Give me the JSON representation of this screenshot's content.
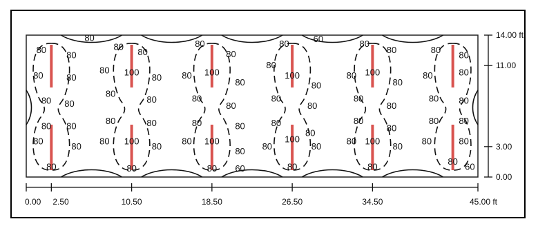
{
  "plan": {
    "x_ticks": [
      {
        "label": "0.00"
      },
      {
        "label": "2.50"
      },
      {
        "label": "10.50"
      },
      {
        "label": "18.50"
      },
      {
        "label": "26.50"
      },
      {
        "label": "34.50"
      },
      {
        "label": "45.00 ft"
      }
    ],
    "y_ticks": [
      {
        "label": "14.00 ft"
      },
      {
        "label": "11.00"
      },
      {
        "label": "3.00"
      },
      {
        "label": "0.00"
      }
    ],
    "luminaire_color": "#d9534f",
    "luminaire_columns": [
      2.5,
      10.5,
      18.5,
      26.5,
      34.5,
      42.5
    ],
    "luminaire_rows": [
      11.0,
      3.0
    ],
    "contour_labels": [
      {
        "text": "80",
        "x": 1.5,
        "y": 12.5
      },
      {
        "text": "80",
        "x": 4.5,
        "y": 12.0
      },
      {
        "text": "80",
        "x": 1.2,
        "y": 10.0
      },
      {
        "text": "80",
        "x": 4.5,
        "y": 9.8
      },
      {
        "text": "80",
        "x": 2.0,
        "y": 7.5
      },
      {
        "text": "80",
        "x": 4.3,
        "y": 7.2
      },
      {
        "text": "80",
        "x": 2.0,
        "y": 5.0
      },
      {
        "text": "80",
        "x": 4.5,
        "y": 5.0
      },
      {
        "text": "80",
        "x": 1.2,
        "y": 3.5
      },
      {
        "text": "80",
        "x": 5.0,
        "y": 3.0
      },
      {
        "text": "80",
        "x": 2.5,
        "y": 1.0
      },
      {
        "text": "80",
        "x": 6.3,
        "y": 13.7
      },
      {
        "text": "80",
        "x": 9.2,
        "y": 12.8
      },
      {
        "text": "80",
        "x": 11.6,
        "y": 12.3
      },
      {
        "text": "80",
        "x": 7.8,
        "y": 10.5
      },
      {
        "text": "100",
        "x": 10.5,
        "y": 10.3
      },
      {
        "text": "80",
        "x": 13.0,
        "y": 9.8
      },
      {
        "text": "80",
        "x": 8.4,
        "y": 8.2
      },
      {
        "text": "80",
        "x": 12.5,
        "y": 7.6
      },
      {
        "text": "80",
        "x": 8.4,
        "y": 5.5
      },
      {
        "text": "80",
        "x": 12.5,
        "y": 5.3
      },
      {
        "text": "80",
        "x": 7.8,
        "y": 3.5
      },
      {
        "text": "100",
        "x": 10.5,
        "y": 3.5
      },
      {
        "text": "80",
        "x": 13.0,
        "y": 3.0
      },
      {
        "text": "80",
        "x": 10.5,
        "y": 0.8
      },
      {
        "text": "80",
        "x": 17.3,
        "y": 13.1
      },
      {
        "text": "80",
        "x": 20.4,
        "y": 12.1
      },
      {
        "text": "80",
        "x": 16.0,
        "y": 10.0
      },
      {
        "text": "100",
        "x": 18.5,
        "y": 10.3
      },
      {
        "text": "80",
        "x": 21.3,
        "y": 9.3
      },
      {
        "text": "80",
        "x": 17.0,
        "y": 7.7
      },
      {
        "text": "80",
        "x": 20.4,
        "y": 7.0
      },
      {
        "text": "80",
        "x": 17.0,
        "y": 5.3
      },
      {
        "text": "80",
        "x": 21.3,
        "y": 5.0
      },
      {
        "text": "80",
        "x": 16.0,
        "y": 3.5
      },
      {
        "text": "100",
        "x": 18.5,
        "y": 3.5
      },
      {
        "text": "80",
        "x": 21.3,
        "y": 2.5
      },
      {
        "text": "60",
        "x": 21.3,
        "y": 0.8
      },
      {
        "text": "80",
        "x": 18.5,
        "y": 0.8
      },
      {
        "text": "80",
        "x": 25.7,
        "y": 13.1
      },
      {
        "text": "60",
        "x": 29.1,
        "y": 13.6
      },
      {
        "text": "80",
        "x": 24.4,
        "y": 11.0
      },
      {
        "text": "100",
        "x": 26.5,
        "y": 10.0
      },
      {
        "text": "80",
        "x": 28.9,
        "y": 9.0
      },
      {
        "text": "80",
        "x": 24.9,
        "y": 7.7
      },
      {
        "text": "80",
        "x": 28.5,
        "y": 7.0
      },
      {
        "text": "80",
        "x": 24.9,
        "y": 5.3
      },
      {
        "text": "80",
        "x": 28.3,
        "y": 4.3
      },
      {
        "text": "80",
        "x": 24.0,
        "y": 3.0
      },
      {
        "text": "100",
        "x": 26.5,
        "y": 3.7
      },
      {
        "text": "80",
        "x": 28.9,
        "y": 3.0
      },
      {
        "text": "80",
        "x": 26.5,
        "y": 1.0
      },
      {
        "text": "80",
        "x": 33.7,
        "y": 13.1
      },
      {
        "text": "80",
        "x": 36.4,
        "y": 12.5
      },
      {
        "text": "80",
        "x": 32.4,
        "y": 10.0
      },
      {
        "text": "100",
        "x": 34.5,
        "y": 10.3
      },
      {
        "text": "80",
        "x": 37.0,
        "y": 9.3
      },
      {
        "text": "80",
        "x": 33.1,
        "y": 7.7
      },
      {
        "text": "80",
        "x": 36.4,
        "y": 7.0
      },
      {
        "text": "80",
        "x": 33.1,
        "y": 5.5
      },
      {
        "text": "80",
        "x": 36.4,
        "y": 4.8
      },
      {
        "text": "80",
        "x": 32.4,
        "y": 3.5
      },
      {
        "text": "100",
        "x": 34.5,
        "y": 3.5
      },
      {
        "text": "80",
        "x": 37.0,
        "y": 3.0
      },
      {
        "text": "80",
        "x": 34.5,
        "y": 1.0
      },
      {
        "text": "80",
        "x": 40.8,
        "y": 12.5
      },
      {
        "text": "80",
        "x": 43.6,
        "y": 12.0
      },
      {
        "text": "80",
        "x": 40.0,
        "y": 10.0
      },
      {
        "text": "80",
        "x": 43.6,
        "y": 10.3
      },
      {
        "text": "80",
        "x": 40.6,
        "y": 7.7
      },
      {
        "text": "80",
        "x": 43.6,
        "y": 7.5
      },
      {
        "text": "80",
        "x": 40.6,
        "y": 5.5
      },
      {
        "text": "80",
        "x": 43.6,
        "y": 5.5
      },
      {
        "text": "80",
        "x": 39.9,
        "y": 3.5
      },
      {
        "text": "80",
        "x": 43.6,
        "y": 3.5
      },
      {
        "text": "80",
        "x": 42.5,
        "y": 1.5
      },
      {
        "text": "60",
        "x": 44.2,
        "y": 1.0
      }
    ]
  }
}
